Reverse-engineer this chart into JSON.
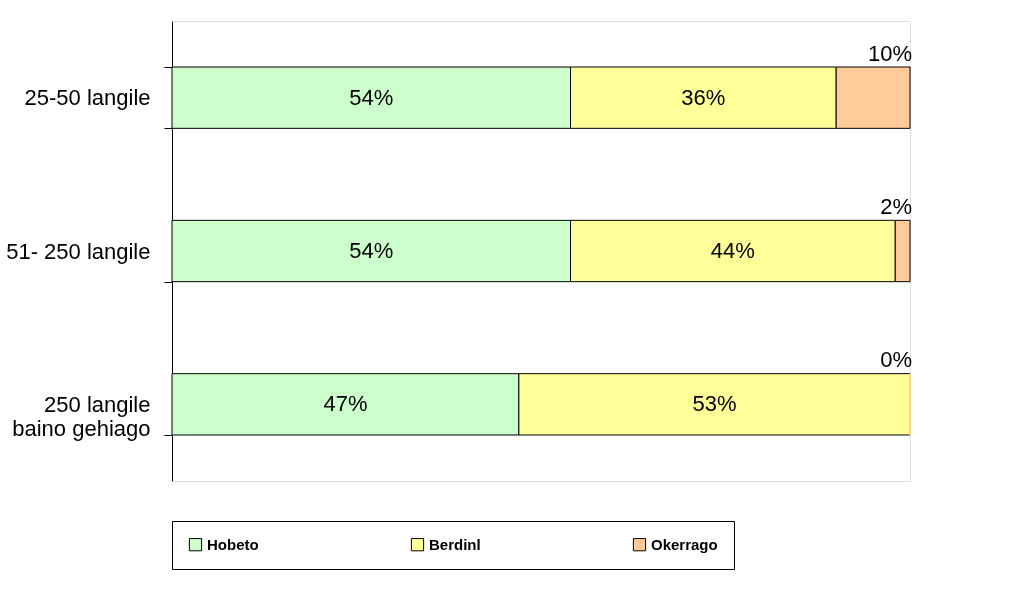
{
  "chart_data": {
    "type": "bar",
    "orientation": "horizontal",
    "stacked": true,
    "categories": [
      "25-50 langile",
      "51- 250 langile",
      "250 langile\nbaino gehiago"
    ],
    "series": [
      {
        "name": "Hobeto",
        "color": "#ccffcc",
        "values": [
          54,
          54,
          47
        ],
        "value_labels": [
          "54%",
          "54%",
          "47%"
        ]
      },
      {
        "name": "Berdinl",
        "color": "#ffff99",
        "values": [
          36,
          44,
          53
        ],
        "value_labels": [
          "36%",
          "44%",
          "53%"
        ]
      },
      {
        "name": "Okerrago",
        "color": "#ffcc99",
        "values": [
          10,
          2,
          0
        ],
        "value_labels": [
          "10%",
          "2%",
          "0%"
        ]
      }
    ],
    "tick_labels": "y",
    "legend": "bottom"
  }
}
